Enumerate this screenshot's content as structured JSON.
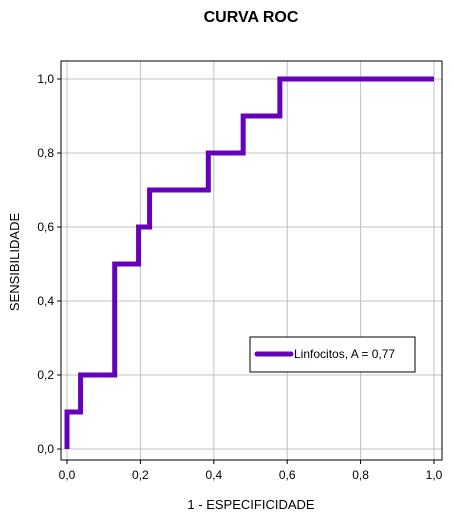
{
  "chart_data": {
    "type": "line",
    "title": "CURVA ROC",
    "xlabel": "1 - ESPECIFICIDADE",
    "ylabel": "SENSIBILIDADE",
    "xlim": [
      0,
      1
    ],
    "ylim": [
      0,
      1
    ],
    "xticks": [
      "0,0",
      "0,2",
      "0,4",
      "0,6",
      "0,8",
      "1,0"
    ],
    "yticks": [
      "0,0",
      "0,2",
      "0,4",
      "0,6",
      "0,8",
      "1,0"
    ],
    "xtick_values": [
      0,
      0.2,
      0.4,
      0.6,
      0.8,
      1.0
    ],
    "ytick_values": [
      0,
      0.2,
      0.4,
      0.6,
      0.8,
      1.0
    ],
    "grid": true,
    "legend_position": "bottom-right",
    "series": [
      {
        "name": "Linfocitos, A = 0,77",
        "color": "#6600BB",
        "x": [
          0,
          0,
          0.037,
          0.037,
          0.13,
          0.13,
          0.195,
          0.195,
          0.225,
          0.225,
          0.385,
          0.385,
          0.48,
          0.48,
          0.58,
          0.58,
          1.0
        ],
        "y": [
          0,
          0.1,
          0.1,
          0.2,
          0.2,
          0.5,
          0.5,
          0.6,
          0.6,
          0.7,
          0.7,
          0.8,
          0.8,
          0.9,
          0.9,
          1.0,
          1.0
        ]
      }
    ]
  }
}
